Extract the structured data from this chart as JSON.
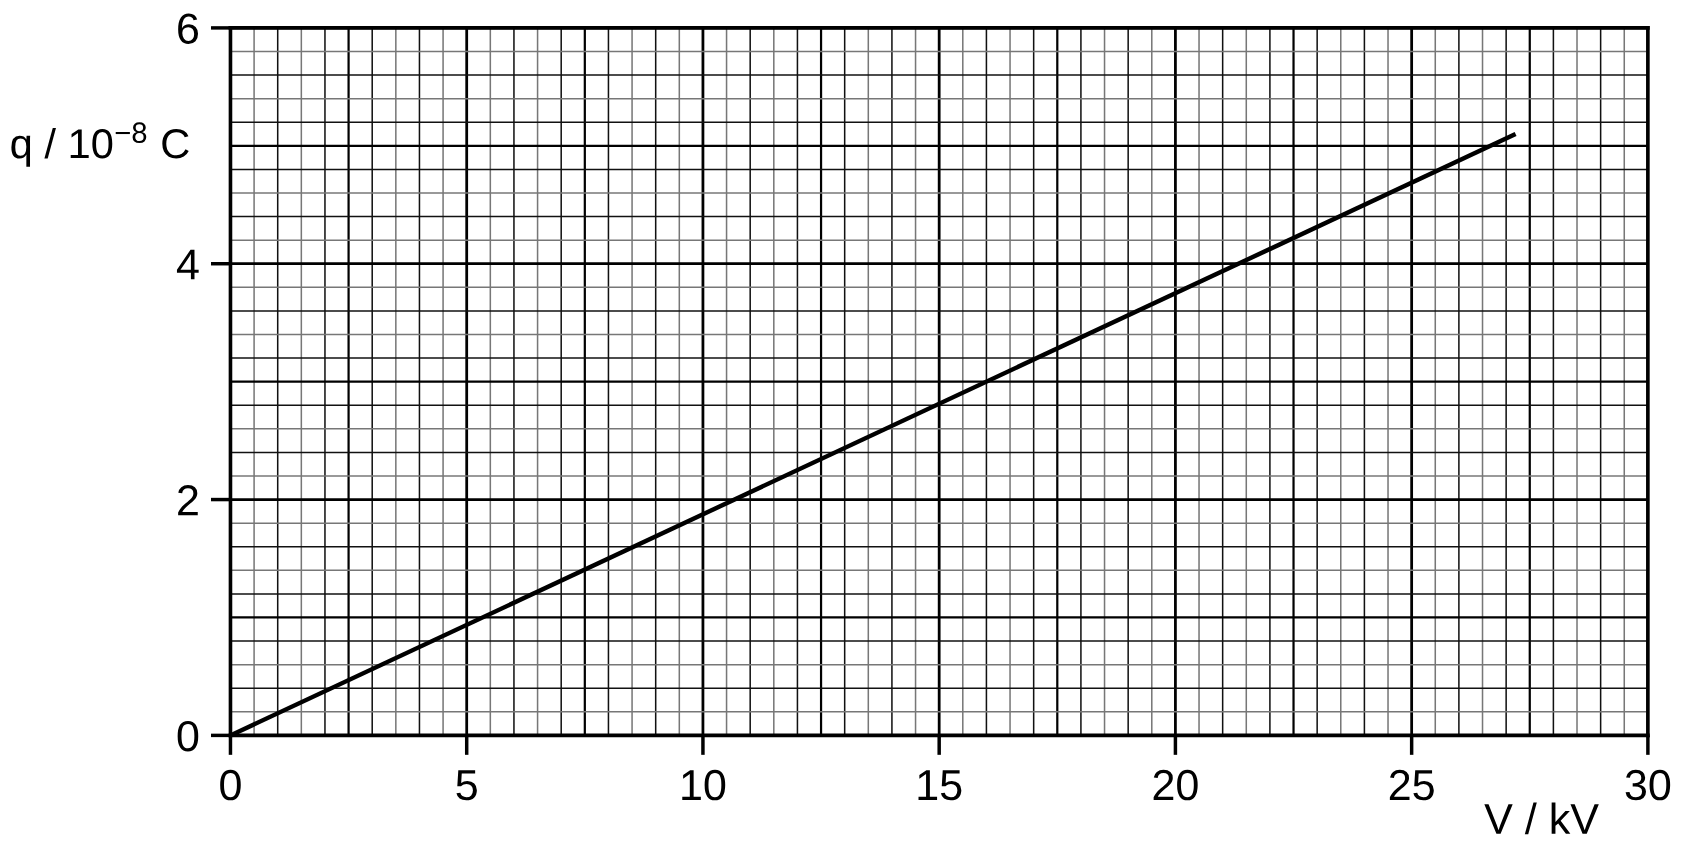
{
  "chart_data": {
    "type": "line",
    "xlabel": "V / kV",
    "ylabel": "q / 10$^{−8}$ C",
    "x": [
      0,
      27.2
    ],
    "series": [
      {
        "color": "#000000",
        "values": [
          0,
          5.1
        ]
      }
    ],
    "xlim": [
      0,
      30
    ],
    "ylim": [
      0,
      6
    ],
    "xticks": [
      0,
      5,
      10,
      15,
      20,
      25,
      30
    ],
    "yticks": [
      0,
      2,
      4,
      6
    ],
    "grid": true,
    "marker": "none",
    "line_style": "solid",
    "legend": false
  }
}
